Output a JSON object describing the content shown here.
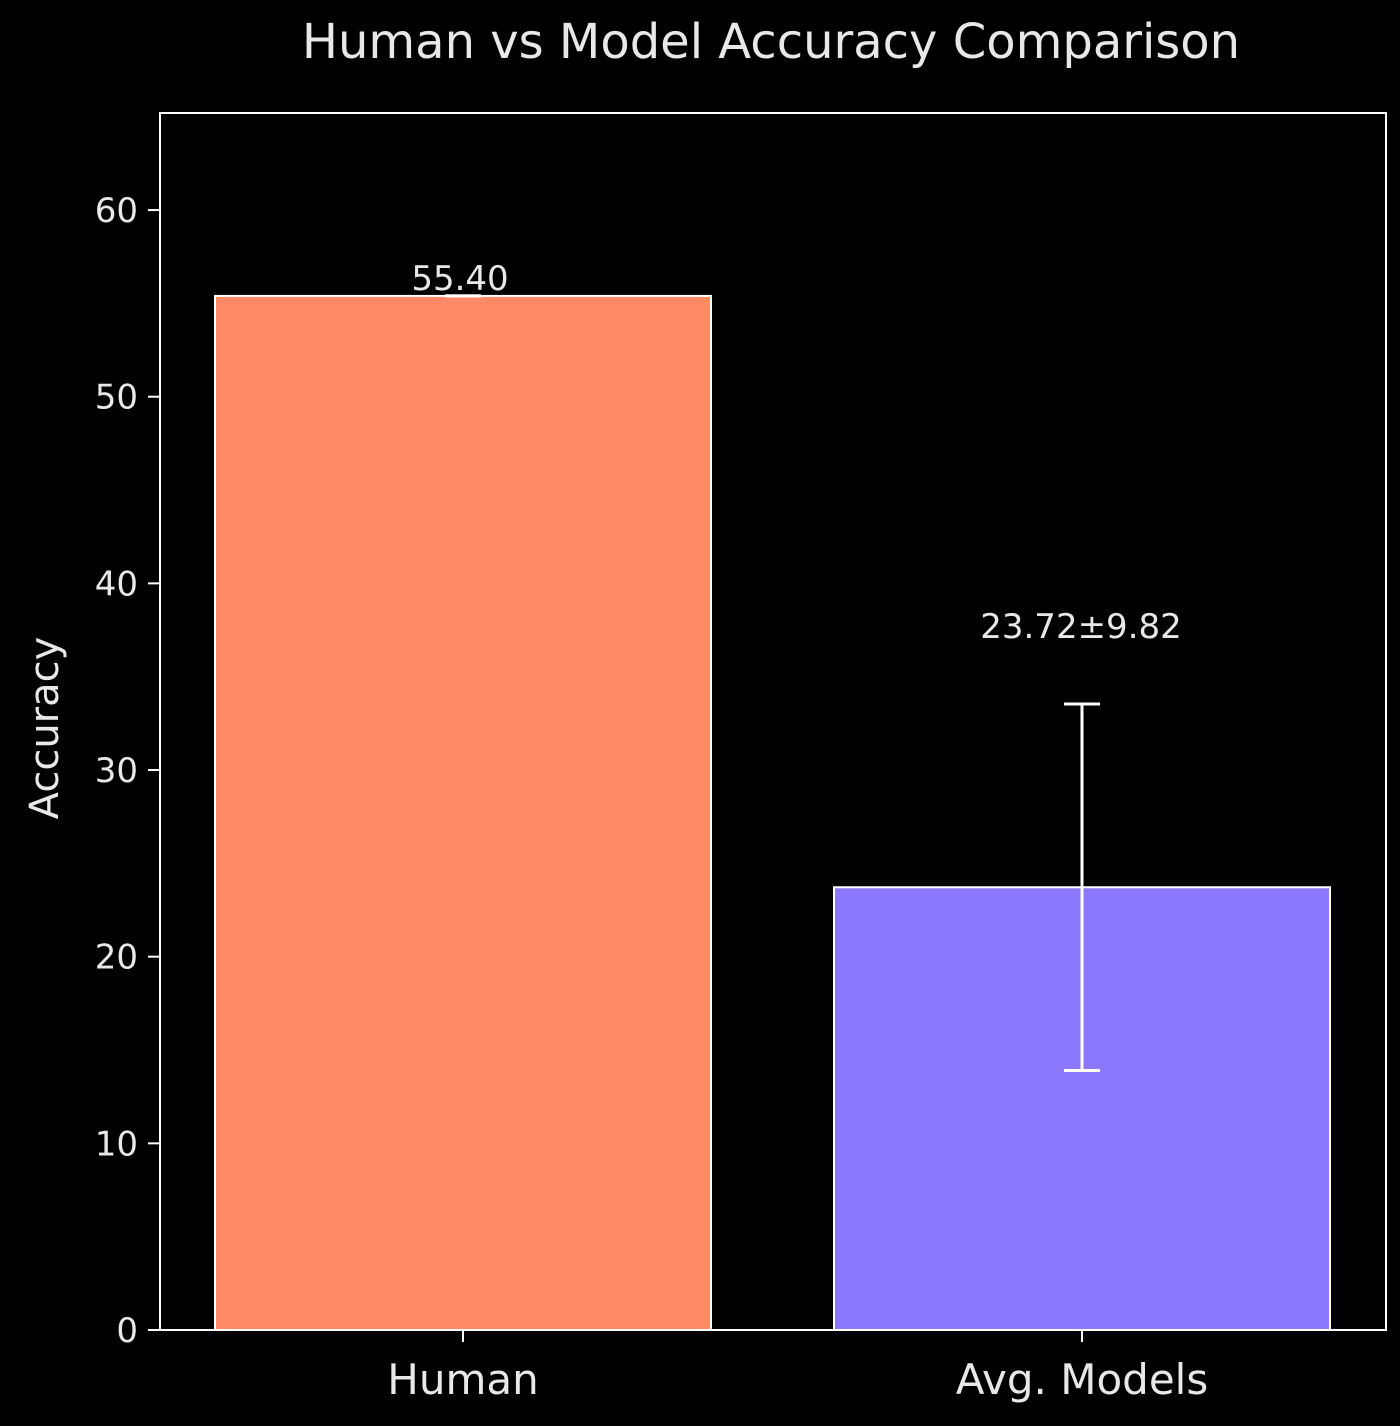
{
  "chart_data": {
    "type": "bar",
    "title": "Human vs Model Accuracy Comparison",
    "xlabel": "",
    "ylabel": "Accuracy",
    "categories": [
      "Human",
      "Avg. Models"
    ],
    "values": [
      55.4,
      23.72
    ],
    "errors": [
      0,
      9.82
    ],
    "data_labels": [
      "55.40",
      "23.72±9.82"
    ],
    "ylim": [
      0,
      65.2
    ],
    "yticks": [
      0,
      10,
      20,
      30,
      40,
      50,
      60
    ],
    "ytick_labels": [
      "0",
      "10",
      "20",
      "30",
      "40",
      "50",
      "60"
    ],
    "grid": false,
    "colors": {
      "background": "#000000",
      "axes": "#ffffff",
      "text": "#e8e8e8",
      "bars": [
        "#ff8a65",
        "#8c78fc"
      ],
      "bar_edge": "#ffffff",
      "errorbar": "#ffffff"
    }
  }
}
